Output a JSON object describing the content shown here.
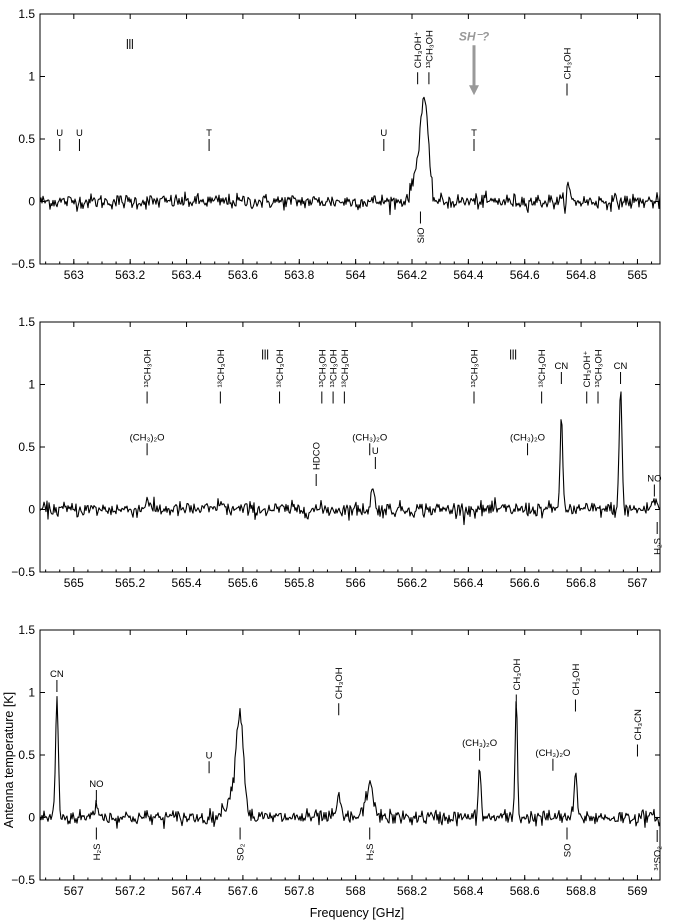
{
  "figure": {
    "xlabel": "Frequency [GHz]",
    "ylabel": "Antenna temperature [K]"
  },
  "chart_data": [
    {
      "type": "line",
      "title": "",
      "xlim": [
        562.88,
        565.08
      ],
      "ylim": [
        -0.5,
        1.5
      ],
      "xticks": [
        "563",
        "563.2",
        "563.4",
        "563.6",
        "563.8",
        "564",
        "564.2",
        "564.4",
        "564.6",
        "564.8",
        "565"
      ],
      "yticks": [
        "−0.5",
        "0",
        "0.5",
        "1",
        "1.5"
      ],
      "noise_sigma": 0.03,
      "peaks": [
        {
          "x": 564.245,
          "height": 0.66,
          "width": 0.013
        },
        {
          "x": 564.225,
          "height": 0.28,
          "width": 0.02
        },
        {
          "x": 564.755,
          "height": 0.13,
          "width": 0.005
        }
      ],
      "series": [
        {
          "name": "",
          "color": "#000000"
        }
      ],
      "annotations": [
        {
          "label": "U",
          "x": 562.95,
          "y": 0.5,
          "side": "above"
        },
        {
          "label": "U",
          "x": 563.02,
          "y": 0.5,
          "side": "above"
        },
        {
          "label": "T",
          "x": 563.48,
          "y": 0.5,
          "side": "above"
        },
        {
          "label": "U",
          "x": 564.1,
          "y": 0.5,
          "side": "above"
        },
        {
          "label": "T",
          "x": 564.42,
          "y": 0.5,
          "side": "above"
        },
        {
          "label": "CH₃OH⁺",
          "x": 564.22,
          "y": 1.05,
          "side": "rot"
        },
        {
          "label": "¹³CH₃OH",
          "x": 564.26,
          "y": 1.05,
          "side": "rot"
        },
        {
          "label": "CH₃OH",
          "x": 564.75,
          "y": 0.96,
          "side": "rot"
        },
        {
          "label": "SiO",
          "x": 564.23,
          "y": -0.08,
          "side": "rot-below"
        }
      ],
      "markers": [
        {
          "x": 563.19,
          "y": 1.3
        }
      ],
      "arrow": {
        "label": "SH⁻?",
        "x": 564.42,
        "y_top": 1.25,
        "y_bottom": 0.85,
        "color": "#999999"
      }
    },
    {
      "type": "line",
      "title": "",
      "xlim": [
        564.88,
        567.08
      ],
      "ylim": [
        -0.5,
        1.5
      ],
      "xticks": [
        "565",
        "565.2",
        "565.4",
        "565.6",
        "565.8",
        "566",
        "566.2",
        "566.4",
        "566.6",
        "566.8",
        "567"
      ],
      "yticks": [
        "−0.5",
        "0",
        "0.5",
        "1",
        "1.5"
      ],
      "noise_sigma": 0.03,
      "peaks": [
        {
          "x": 565.26,
          "height": 0.1,
          "width": 0.006
        },
        {
          "x": 565.52,
          "height": 0.08,
          "width": 0.006
        },
        {
          "x": 566.06,
          "height": 0.17,
          "width": 0.006
        },
        {
          "x": 566.73,
          "height": 0.68,
          "width": 0.005
        },
        {
          "x": 566.94,
          "height": 0.94,
          "width": 0.005
        },
        {
          "x": 567.06,
          "height": 0.07,
          "width": 0.01
        }
      ],
      "series": [
        {
          "name": "",
          "color": "#000000"
        }
      ],
      "annotations": [
        {
          "label": "¹³CH₃OH",
          "x": 565.26,
          "y": 0.96,
          "side": "rot"
        },
        {
          "label": "¹³CH₃OH",
          "x": 565.52,
          "y": 0.96,
          "side": "rot"
        },
        {
          "label": "¹³CH₃OH",
          "x": 565.73,
          "y": 0.96,
          "side": "rot"
        },
        {
          "label": "¹³CH₃OH",
          "x": 565.88,
          "y": 0.96,
          "side": "rot"
        },
        {
          "label": "¹³CH₃OH",
          "x": 565.92,
          "y": 0.96,
          "side": "rot"
        },
        {
          "label": "¹³CH₃OH",
          "x": 565.96,
          "y": 0.96,
          "side": "rot"
        },
        {
          "label": "¹³CH₃OH",
          "x": 566.42,
          "y": 0.96,
          "side": "rot"
        },
        {
          "label": "¹³CH₃OH",
          "x": 566.66,
          "y": 0.96,
          "side": "rot"
        },
        {
          "label": "CH₃OH⁺",
          "x": 566.82,
          "y": 0.96,
          "side": "rot"
        },
        {
          "label": "¹³CH₃OH",
          "x": 566.86,
          "y": 0.96,
          "side": "rot"
        },
        {
          "label": "HDCO",
          "x": 565.86,
          "y": 0.3,
          "side": "rot"
        },
        {
          "label": "CN",
          "x": 566.73,
          "y": 1.1,
          "side": "above"
        },
        {
          "label": "CN",
          "x": 566.94,
          "y": 1.1,
          "side": "above"
        },
        {
          "label": "(CH₃)₂O",
          "x": 565.26,
          "y": 0.53,
          "side": "above"
        },
        {
          "label": "(CH₃)₂O",
          "x": 566.05,
          "y": 0.53,
          "side": "above"
        },
        {
          "label": "(CH₃)₂O",
          "x": 566.61,
          "y": 0.53,
          "side": "above"
        },
        {
          "label": "U",
          "x": 566.07,
          "y": 0.42,
          "side": "above"
        },
        {
          "label": "NO",
          "x": 567.06,
          "y": 0.2,
          "side": "above"
        },
        {
          "label": "H₂S",
          "x": 567.07,
          "y": -0.1,
          "side": "rot-below"
        }
      ],
      "markers": [
        {
          "x": 565.67,
          "y": 1.28
        },
        {
          "x": 566.55,
          "y": 1.28
        }
      ],
      "arrow": null
    },
    {
      "type": "line",
      "title": "",
      "xlim": [
        566.88,
        569.08
      ],
      "ylim": [
        -0.5,
        1.5
      ],
      "xticks": [
        "567",
        "567.2",
        "567.4",
        "567.6",
        "567.8",
        "568",
        "568.2",
        "568.4",
        "568.6",
        "568.8",
        "569"
      ],
      "yticks": [
        "−0.5",
        "0",
        "0.5",
        "1",
        "1.5"
      ],
      "noise_sigma": 0.03,
      "peaks": [
        {
          "x": 566.94,
          "height": 0.95,
          "width": 0.005
        },
        {
          "x": 567.08,
          "height": 0.09,
          "width": 0.01
        },
        {
          "x": 567.59,
          "height": 0.7,
          "width": 0.012
        },
        {
          "x": 567.57,
          "height": 0.22,
          "width": 0.025
        },
        {
          "x": 567.94,
          "height": 0.18,
          "width": 0.006
        },
        {
          "x": 568.05,
          "height": 0.24,
          "width": 0.015
        },
        {
          "x": 568.44,
          "height": 0.45,
          "width": 0.004
        },
        {
          "x": 568.57,
          "height": 0.97,
          "width": 0.004
        },
        {
          "x": 568.78,
          "height": 0.35,
          "width": 0.005
        }
      ],
      "series": [
        {
          "name": "",
          "color": "#000000"
        }
      ],
      "annotations": [
        {
          "label": "CN",
          "x": 566.94,
          "y": 1.1,
          "side": "above"
        },
        {
          "label": "NO",
          "x": 567.08,
          "y": 0.22,
          "side": "above"
        },
        {
          "label": "U",
          "x": 567.48,
          "y": 0.45,
          "side": "above"
        },
        {
          "label": "CH₃OH",
          "x": 567.94,
          "y": 0.93,
          "side": "rot"
        },
        {
          "label": "CH₃OH",
          "x": 568.57,
          "y": 1.0,
          "side": "rot"
        },
        {
          "label": "CH₃OH",
          "x": 568.78,
          "y": 0.96,
          "side": "rot"
        },
        {
          "label": "(CH₃)₂O",
          "x": 568.44,
          "y": 0.55,
          "side": "above"
        },
        {
          "label": "(CH₃)₂O",
          "x": 568.7,
          "y": 0.47,
          "side": "above"
        },
        {
          "label": "CH₃CN",
          "x": 569.0,
          "y": 0.6,
          "side": "rot"
        },
        {
          "label": "H₂S",
          "x": 567.08,
          "y": -0.08,
          "side": "rot-below"
        },
        {
          "label": "SO₂",
          "x": 567.59,
          "y": -0.08,
          "side": "rot-below"
        },
        {
          "label": "H₂S",
          "x": 568.05,
          "y": -0.08,
          "side": "rot-below"
        },
        {
          "label": "SO",
          "x": 568.75,
          "y": -0.08,
          "side": "rot-below"
        },
        {
          "label": "³⁴SO₂",
          "x": 569.07,
          "y": -0.1,
          "side": "rot-below"
        }
      ],
      "markers": [],
      "arrow": null
    }
  ]
}
